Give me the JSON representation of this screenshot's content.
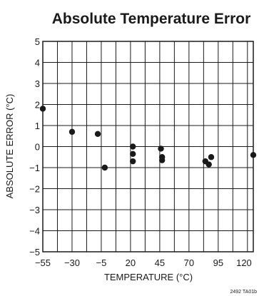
{
  "chart_data": {
    "type": "scatter",
    "title": "Absolute Temperature Error",
    "xlabel": "TEMPERATURE (°C)",
    "ylabel": "ABSOLUTE ERROR (°C)",
    "xlim": [
      -55,
      125
    ],
    "ylim": [
      -5,
      5
    ],
    "x_ticks": [
      -55,
      -30,
      -5,
      20,
      45,
      70,
      95,
      120
    ],
    "x_tick_labels": [
      "−55",
      "−30",
      "−5",
      "20",
      "45",
      "70",
      "95",
      "120"
    ],
    "y_ticks": [
      5,
      4,
      3,
      2,
      1,
      0,
      -1,
      -2,
      -3,
      -4,
      -5
    ],
    "y_tick_labels": [
      "5",
      "4",
      "3",
      "2",
      "1",
      "0",
      "−1",
      "−2",
      "−3",
      "−4",
      "−5"
    ],
    "x_grid_step": 12.5,
    "grid": true,
    "points": [
      {
        "x": -55,
        "y": 1.8
      },
      {
        "x": -30,
        "y": 0.7
      },
      {
        "x": -8,
        "y": 0.6
      },
      {
        "x": -2,
        "y": -1.0
      },
      {
        "x": 22,
        "y": 0.0
      },
      {
        "x": 22,
        "y": -0.35
      },
      {
        "x": 22,
        "y": -0.7
      },
      {
        "x": 46,
        "y": -0.1
      },
      {
        "x": 47,
        "y": -0.5
      },
      {
        "x": 47,
        "y": -0.65
      },
      {
        "x": 84,
        "y": -0.7
      },
      {
        "x": 87,
        "y": -0.85
      },
      {
        "x": 89,
        "y": -0.5
      },
      {
        "x": 125,
        "y": -0.4
      }
    ]
  },
  "footnote": "2492 TA01b",
  "colors": {
    "grid": "#1a1a1a",
    "marker": "#1a1a1a",
    "background": "#ffffff"
  }
}
